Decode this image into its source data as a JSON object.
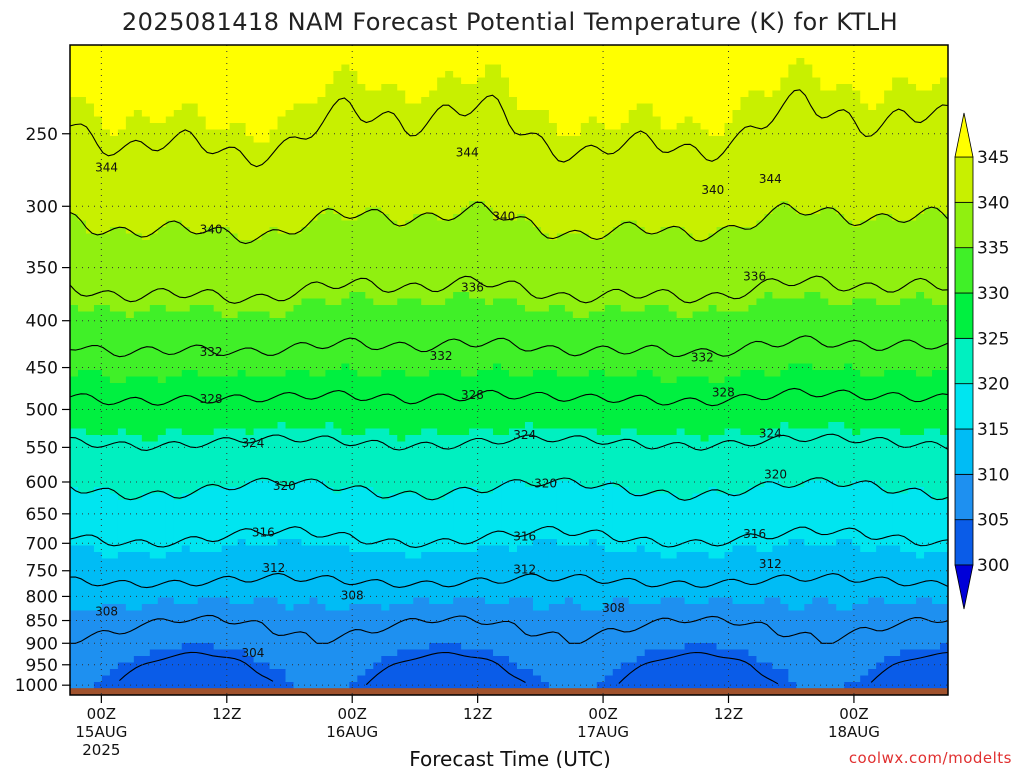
{
  "chart_data": {
    "type": "heatmap",
    "title": "2025081418 NAM Forecast Potential Temperature (K) for KTLH",
    "xlabel": "Forecast Time (UTC)",
    "ylabel": "",
    "y_scale": "log",
    "y_range_hpa": [
      1025,
      200
    ],
    "y_ticks": [
      250,
      300,
      350,
      400,
      450,
      500,
      550,
      600,
      650,
      700,
      750,
      800,
      850,
      900,
      950,
      1000
    ],
    "x_ticks": [
      {
        "label": "00Z",
        "sub": "15AUG",
        "sub2": "2025"
      },
      {
        "label": "12Z",
        "sub": "",
        "sub2": ""
      },
      {
        "label": "00Z",
        "sub": "16AUG",
        "sub2": ""
      },
      {
        "label": "12Z",
        "sub": "",
        "sub2": ""
      },
      {
        "label": "00Z",
        "sub": "17AUG",
        "sub2": ""
      },
      {
        "label": "12Z",
        "sub": "",
        "sub2": ""
      },
      {
        "label": "00Z",
        "sub": "18AUG",
        "sub2": ""
      }
    ],
    "x_range_hours": [
      -3,
      81
    ],
    "grid": true,
    "colorbar": {
      "levels": [
        300,
        305,
        310,
        315,
        320,
        325,
        330,
        335,
        340,
        345
      ],
      "labels": [
        "300",
        "305",
        "310",
        "315",
        "320",
        "325",
        "330",
        "335",
        "340",
        "345"
      ],
      "colors": [
        "#0000d8",
        "#0a5ce8",
        "#1e90f0",
        "#00bcf5",
        "#00e5f0",
        "#00f0c0",
        "#00f040",
        "#40f028",
        "#90f010",
        "#c8f000",
        "#ffff00"
      ]
    },
    "contours": [
      {
        "value": 304,
        "label": "304"
      },
      {
        "value": 308,
        "label": "308"
      },
      {
        "value": 312,
        "label": "312"
      },
      {
        "value": 316,
        "label": "316"
      },
      {
        "value": 320,
        "label": "320"
      },
      {
        "value": 324,
        "label": "324"
      },
      {
        "value": 328,
        "label": "328"
      },
      {
        "value": 332,
        "label": "332"
      },
      {
        "value": 336,
        "label": "336"
      },
      {
        "value": 340,
        "label": "340"
      },
      {
        "value": 344,
        "label": "344"
      }
    ],
    "contour_labels": [
      {
        "text": "344",
        "hour": 0.5,
        "p": 272
      },
      {
        "text": "344",
        "hour": 35,
        "p": 262
      },
      {
        "text": "344",
        "hour": 64,
        "p": 280
      },
      {
        "text": "340",
        "hour": 10.5,
        "p": 318
      },
      {
        "text": "340",
        "hour": 38.5,
        "p": 308
      },
      {
        "text": "340",
        "hour": 58.5,
        "p": 288
      },
      {
        "text": "336",
        "hour": 35.5,
        "p": 368
      },
      {
        "text": "336",
        "hour": 62.5,
        "p": 358
      },
      {
        "text": "332",
        "hour": 10.5,
        "p": 433
      },
      {
        "text": "332",
        "hour": 32.5,
        "p": 437
      },
      {
        "text": "332",
        "hour": 57.5,
        "p": 439
      },
      {
        "text": "328",
        "hour": 10.5,
        "p": 487
      },
      {
        "text": "328",
        "hour": 35.5,
        "p": 482
      },
      {
        "text": "328",
        "hour": 59.5,
        "p": 479
      },
      {
        "text": "324",
        "hour": 14.5,
        "p": 544
      },
      {
        "text": "324",
        "hour": 40.5,
        "p": 533
      },
      {
        "text": "324",
        "hour": 64,
        "p": 531
      },
      {
        "text": "320",
        "hour": 17.5,
        "p": 606
      },
      {
        "text": "320",
        "hour": 42.5,
        "p": 602
      },
      {
        "text": "320",
        "hour": 64.5,
        "p": 589
      },
      {
        "text": "316",
        "hour": 15.5,
        "p": 681
      },
      {
        "text": "316",
        "hour": 40.5,
        "p": 688
      },
      {
        "text": "316",
        "hour": 62.5,
        "p": 684
      },
      {
        "text": "312",
        "hour": 16.5,
        "p": 745
      },
      {
        "text": "312",
        "hour": 40.5,
        "p": 748
      },
      {
        "text": "312",
        "hour": 64,
        "p": 737
      },
      {
        "text": "308",
        "hour": 24,
        "p": 798
      },
      {
        "text": "308",
        "hour": 0.5,
        "p": 831
      },
      {
        "text": "308",
        "hour": 49,
        "p": 824
      },
      {
        "text": "304",
        "hour": 14.5,
        "p": 922
      }
    ]
  },
  "credit": "coolwx.com/modelts"
}
